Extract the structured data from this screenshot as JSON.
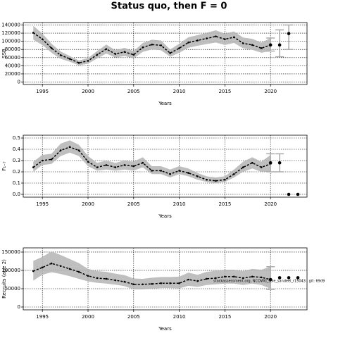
{
  "title": "Status quo, then F = 0",
  "chart_data": [
    {
      "type": "line",
      "ylabel": "SSB",
      "xlabel": "Years",
      "color": "#000000",
      "band_color": "#b4b4b4",
      "projection_color": "#aaaaaa",
      "grid": true,
      "x": [
        1994,
        1995,
        1996,
        1997,
        1998,
        1999,
        2000,
        2001,
        2002,
        2003,
        2004,
        2005,
        2006,
        2007,
        2008,
        2009,
        2010,
        2011,
        2012,
        2013,
        2014,
        2015,
        2016,
        2017,
        2018,
        2019,
        2020
      ],
      "values": [
        121000,
        105000,
        83000,
        66000,
        57000,
        47000,
        52000,
        67000,
        81000,
        69000,
        74000,
        67000,
        85000,
        92000,
        90000,
        71000,
        83000,
        97000,
        102000,
        107000,
        112000,
        105000,
        110000,
        95000,
        91000,
        83000,
        91000
      ],
      "lower": [
        104000,
        91000,
        72000,
        57000,
        50000,
        41000,
        45000,
        58000,
        70000,
        60000,
        64000,
        58000,
        74000,
        80000,
        78000,
        62000,
        72000,
        84000,
        89000,
        93000,
        97000,
        91000,
        96000,
        83000,
        79000,
        72000,
        76000
      ],
      "upper": [
        138000,
        119000,
        94000,
        75000,
        64000,
        53000,
        59000,
        76000,
        92000,
        78000,
        84000,
        76000,
        96000,
        104000,
        102000,
        80000,
        94000,
        110000,
        115000,
        121000,
        127000,
        119000,
        124000,
        109000,
        106000,
        97000,
        108000
      ],
      "projection": {
        "x": [
          2020,
          2021,
          2022
        ],
        "values": [
          91000,
          91000,
          119000
        ],
        "lower": [
          76000,
          62000,
          80000
        ],
        "upper": [
          108000,
          128000,
          140000
        ]
      },
      "xlim": [
        1992.9,
        2024
      ],
      "xticks": [
        1995,
        2000,
        2005,
        2010,
        2015,
        2020
      ],
      "ylim": [
        -6000,
        146000
      ],
      "yticks": [
        0,
        20000,
        40000,
        60000,
        80000,
        100000,
        120000,
        140000
      ]
    },
    {
      "type": "line",
      "ylabel": "F₁₋₇",
      "xlabel": "Years",
      "color": "#000000",
      "band_color": "#b4b4b4",
      "projection_color": "#aaaaaa",
      "grid": true,
      "x": [
        1994,
        1995,
        1996,
        1997,
        1998,
        1999,
        2000,
        2001,
        2002,
        2003,
        2004,
        2005,
        2006,
        2007,
        2008,
        2009,
        2010,
        2011,
        2012,
        2013,
        2014,
        2015,
        2016,
        2017,
        2018,
        2019,
        2020
      ],
      "values": [
        0.24,
        0.3,
        0.31,
        0.39,
        0.42,
        0.39,
        0.29,
        0.24,
        0.26,
        0.24,
        0.26,
        0.25,
        0.28,
        0.21,
        0.21,
        0.18,
        0.21,
        0.19,
        0.16,
        0.13,
        0.12,
        0.13,
        0.18,
        0.24,
        0.28,
        0.24,
        0.27
      ],
      "lower": [
        0.2,
        0.26,
        0.27,
        0.34,
        0.37,
        0.34,
        0.25,
        0.21,
        0.22,
        0.21,
        0.22,
        0.21,
        0.24,
        0.18,
        0.18,
        0.15,
        0.18,
        0.16,
        0.13,
        0.11,
        0.1,
        0.11,
        0.15,
        0.2,
        0.23,
        0.2,
        0.2
      ],
      "upper": [
        0.29,
        0.35,
        0.36,
        0.45,
        0.48,
        0.44,
        0.34,
        0.28,
        0.3,
        0.28,
        0.3,
        0.29,
        0.33,
        0.25,
        0.25,
        0.22,
        0.25,
        0.23,
        0.19,
        0.16,
        0.15,
        0.16,
        0.22,
        0.29,
        0.33,
        0.29,
        0.35
      ],
      "projection": {
        "x": [
          2020,
          2021,
          2022,
          2023
        ],
        "values": [
          0.28,
          0.28,
          0,
          0
        ],
        "lower": [
          0.2,
          0.2,
          null,
          null
        ],
        "upper": [
          0.36,
          0.36,
          null,
          null
        ]
      },
      "xlim": [
        1992.9,
        2024
      ],
      "xticks": [
        1995,
        2000,
        2005,
        2010,
        2015,
        2020
      ],
      "ylim": [
        -0.025,
        0.525
      ],
      "yticks": [
        {
          "value": 0,
          "label": "0.0"
        },
        0.1,
        0.2,
        0.3,
        0.4,
        0.5
      ]
    },
    {
      "type": "line",
      "ylabel": "Recruits (age 2)",
      "xlabel": "Years",
      "color": "#000000",
      "band_color": "#b4b4b4",
      "projection_color": "#aaaaaa",
      "grid": true,
      "annotation": "stockassessment.org, NCOWG_sole_sandeel_r15043 , git: 69d9",
      "x": [
        1994,
        1995,
        1996,
        1997,
        1998,
        1999,
        2000,
        2001,
        2002,
        2003,
        2004,
        2005,
        2006,
        2007,
        2008,
        2009,
        2010,
        2011,
        2012,
        2013,
        2014,
        2015,
        2016,
        2017,
        2018,
        2019,
        2020
      ],
      "values": [
        98000,
        108000,
        119000,
        112000,
        104000,
        96000,
        85000,
        79000,
        77000,
        73000,
        69000,
        62000,
        62000,
        63000,
        65000,
        65000,
        65000,
        75000,
        71000,
        77000,
        79000,
        83000,
        83000,
        79000,
        83000,
        81000,
        75000
      ],
      "lower": [
        72000,
        88000,
        95000,
        90000,
        84000,
        77000,
        70000,
        66000,
        64000,
        61000,
        57000,
        48000,
        48000,
        50000,
        52000,
        52000,
        51000,
        58000,
        55000,
        60000,
        62000,
        64000,
        64000,
        60000,
        64000,
        60000,
        50000
      ],
      "upper": [
        126000,
        137000,
        152000,
        142000,
        131000,
        120000,
        104000,
        98000,
        96000,
        91000,
        87000,
        78000,
        77000,
        80000,
        82000,
        82000,
        83000,
        94000,
        88000,
        96000,
        99000,
        102000,
        102000,
        98000,
        104000,
        102000,
        110000
      ],
      "projection": {
        "x": [
          2020,
          2021,
          2022,
          2023
        ],
        "values": [
          75000,
          80000,
          80000,
          80000
        ],
        "lower": [
          48000,
          null,
          null,
          null
        ],
        "upper": [
          110000,
          null,
          null,
          null
        ]
      },
      "xlim": [
        1992.9,
        2024
      ],
      "xticks": [
        1995,
        2000,
        2005,
        2010,
        2015,
        2020
      ],
      "ylim": [
        -7700,
        161500
      ],
      "yticks": [
        0,
        50000,
        100000,
        150000
      ]
    }
  ]
}
